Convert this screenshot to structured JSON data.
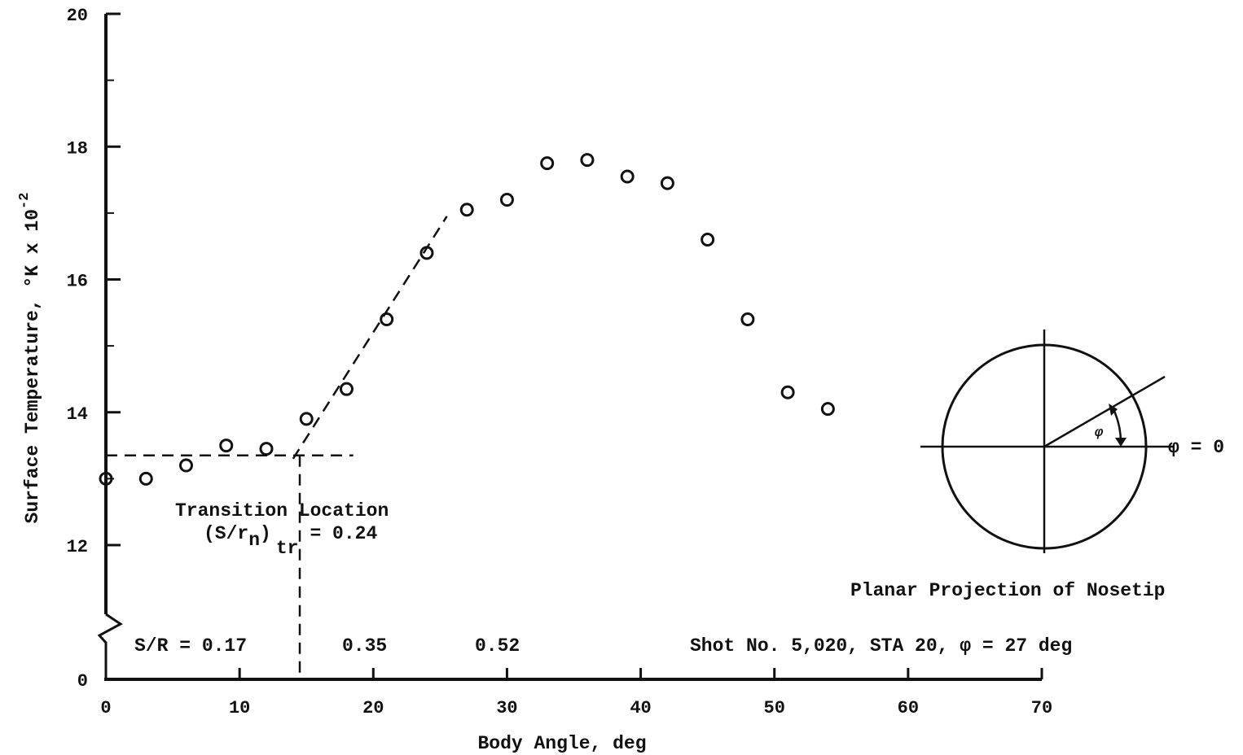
{
  "chart_data": {
    "type": "scatter",
    "xlabel": "Body Angle, deg",
    "ylabel": "Surface Temperature, °K x 10",
    "ylabel_exp": "-2",
    "xlim": [
      0,
      70
    ],
    "ylim": [
      12,
      20
    ],
    "x_ticks": [
      "0",
      "10",
      "20",
      "30",
      "40",
      "50",
      "60",
      "70"
    ],
    "y_ticks": [
      "12",
      "14",
      "16",
      "18",
      "20"
    ],
    "y_zero_label": "0",
    "axis_break": true,
    "grid": false,
    "series": [
      {
        "marker": "open-circle",
        "points": [
          {
            "x": 0,
            "y": 13.0
          },
          {
            "x": 3,
            "y": 13.0
          },
          {
            "x": 6,
            "y": 13.2
          },
          {
            "x": 9,
            "y": 13.5
          },
          {
            "x": 12,
            "y": 13.45
          },
          {
            "x": 15,
            "y": 13.9
          },
          {
            "x": 18,
            "y": 14.35
          },
          {
            "x": 21,
            "y": 15.4
          },
          {
            "x": 24,
            "y": 16.4
          },
          {
            "x": 27,
            "y": 17.05
          },
          {
            "x": 30,
            "y": 17.2
          },
          {
            "x": 33,
            "y": 17.75
          },
          {
            "x": 36,
            "y": 17.8
          },
          {
            "x": 39,
            "y": 17.55
          },
          {
            "x": 42,
            "y": 17.45
          },
          {
            "x": 45,
            "y": 16.6
          },
          {
            "x": 48,
            "y": 15.4
          },
          {
            "x": 51,
            "y": 14.3
          },
          {
            "x": 54,
            "y": 14.05
          }
        ]
      }
    ],
    "fit_lines": [
      {
        "style": "dashed",
        "from": {
          "x": 0,
          "y": 13.35
        },
        "to": {
          "x": 18.5,
          "y": 13.35
        }
      },
      {
        "style": "dashed",
        "from": {
          "x": 14,
          "y": 13.3
        },
        "to": {
          "x": 25.5,
          "y": 16.95
        }
      },
      {
        "style": "dashed",
        "from": {
          "x": 14.5,
          "y": 13.35
        },
        "to": {
          "x": 14.5,
          "y": 12
        }
      }
    ],
    "annotations": {
      "transition_line1": "Transition Location",
      "transition_main": "(S/r",
      "transition_sub_n": "n",
      "transition_close": ")",
      "transition_sub_tr": "tr",
      "transition_value": "= 0.24",
      "sr_values": [
        "S/R = 0.17",
        "0.35",
        "0.52"
      ],
      "shot_info": "Shot No. 5,020, STA 20, φ = 27 deg",
      "inset_caption": "Planar Projection of Nosetip",
      "inset_phi": "φ",
      "inset_phi_zero": "φ = 0"
    }
  }
}
